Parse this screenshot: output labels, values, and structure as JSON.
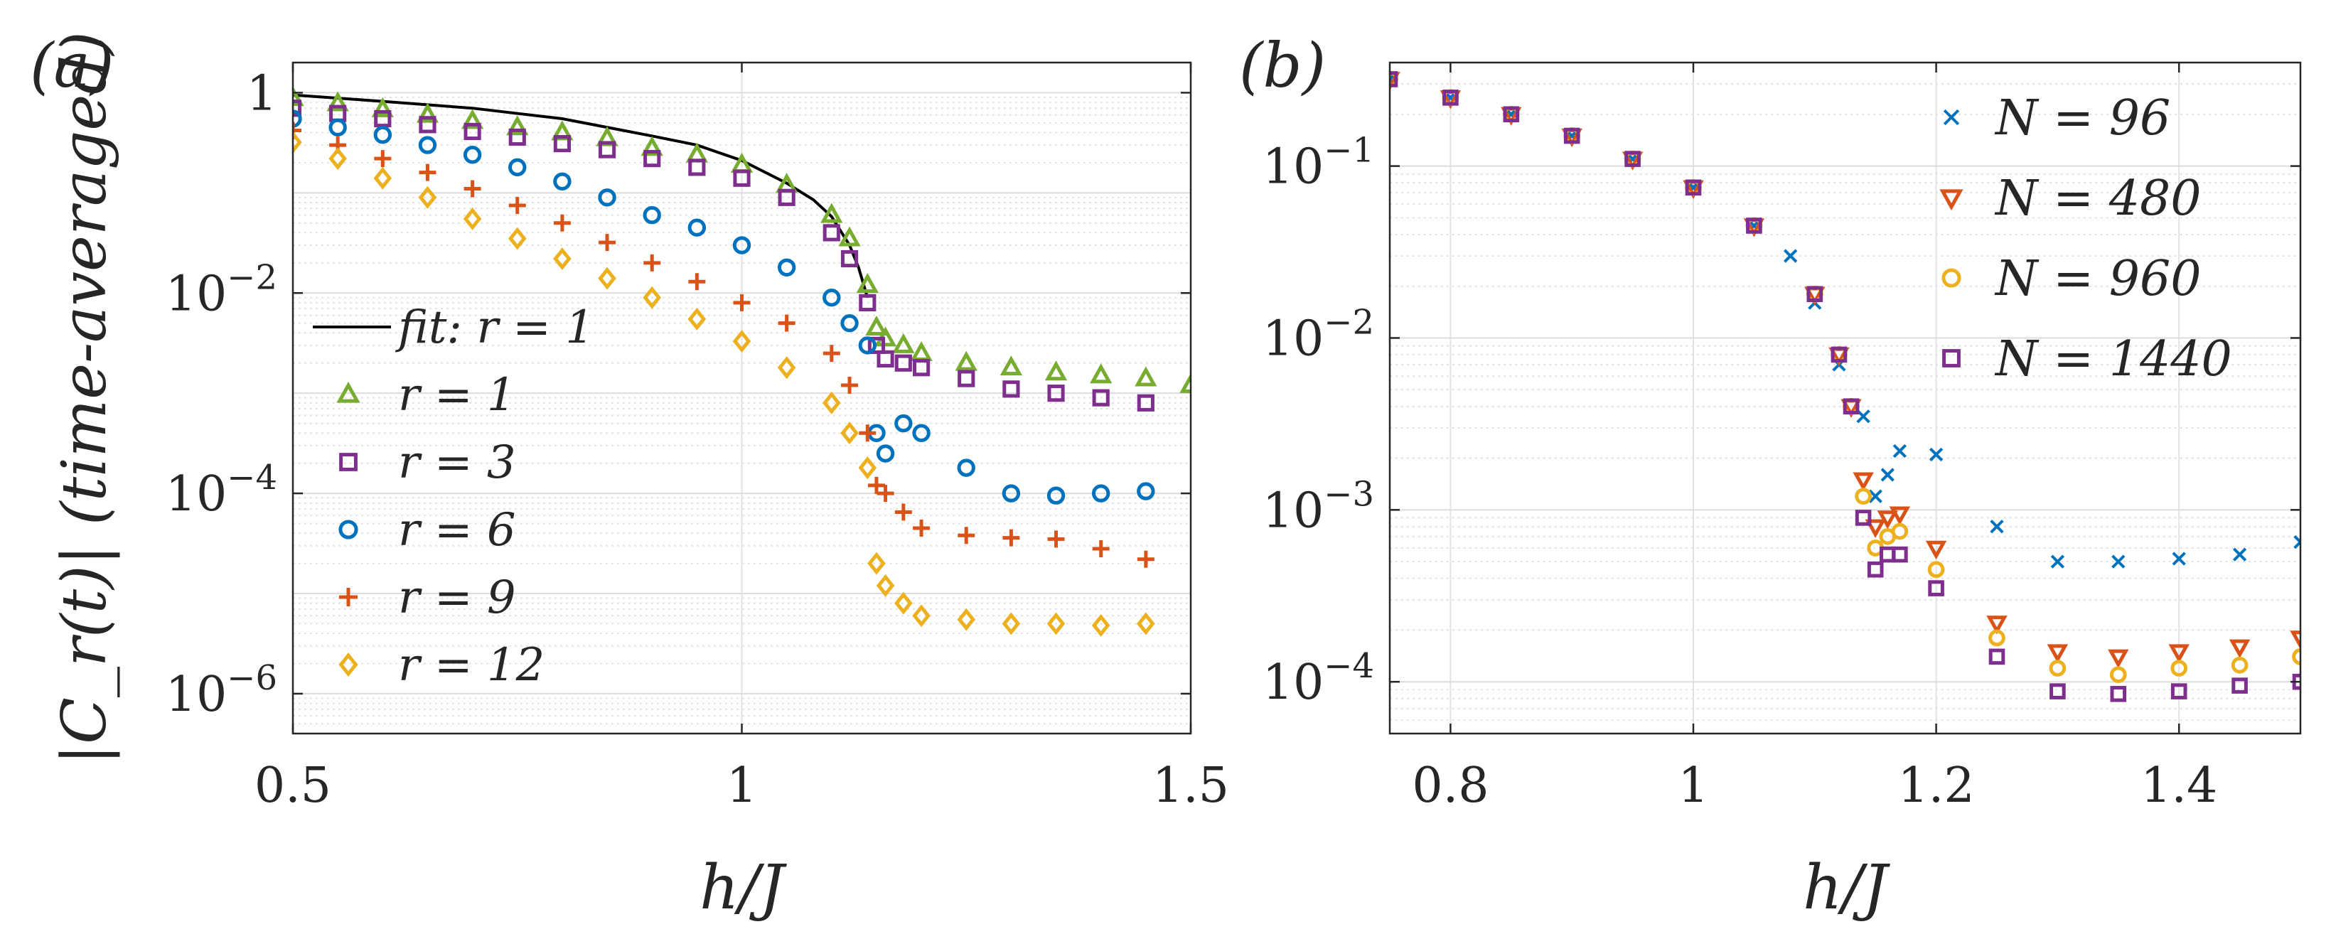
{
  "chart_data": [
    {
      "panel_label": "(a)",
      "type": "scatter",
      "yscale": "log",
      "xlabel": "h/J",
      "ylabel": "|C_r(t)| (time-averaged)",
      "xlim": [
        0.5,
        1.5
      ],
      "ylim": [
        4e-07,
        2.0
      ],
      "xticks": [
        {
          "v": 0.5,
          "label": "0.5"
        },
        {
          "v": 1,
          "label": "1"
        },
        {
          "v": 1.5,
          "label": "1.5"
        }
      ],
      "yticks": [
        {
          "v": 1,
          "base": "1",
          "exp": ""
        },
        {
          "v": 0.01,
          "base": "10",
          "exp": "−2"
        },
        {
          "v": 0.0001,
          "base": "10",
          "exp": "−4"
        },
        {
          "v": 1e-06,
          "base": "10",
          "exp": "−6"
        }
      ],
      "legend_position": "bottom-left",
      "legend": [
        "fit: r = 1",
        "r = 1",
        "r = 3",
        "r = 6",
        "r = 9",
        "r = 12"
      ],
      "fit": {
        "name": "fit: r = 1",
        "x": [
          0.5,
          0.6,
          0.7,
          0.8,
          0.9,
          0.95,
          1.0,
          1.05,
          1.08,
          1.1,
          1.12,
          1.13,
          1.14
        ],
        "y": [
          0.95,
          0.82,
          0.7,
          0.55,
          0.37,
          0.3,
          0.21,
          0.125,
          0.085,
          0.058,
          0.03,
          0.018,
          0.009
        ]
      },
      "series": [
        {
          "name": "r = 1",
          "marker": "triangle",
          "color": "#77AC30",
          "x": [
            0.5,
            0.55,
            0.6,
            0.65,
            0.7,
            0.75,
            0.8,
            0.85,
            0.9,
            0.95,
            1.0,
            1.05,
            1.1,
            1.12,
            1.14,
            1.15,
            1.16,
            1.18,
            1.2,
            1.25,
            1.3,
            1.35,
            1.4,
            1.45,
            1.5
          ],
          "y": [
            0.88,
            0.78,
            0.68,
            0.6,
            0.52,
            0.45,
            0.4,
            0.35,
            0.28,
            0.24,
            0.19,
            0.12,
            0.06,
            0.035,
            0.012,
            0.0045,
            0.0035,
            0.003,
            0.0025,
            0.002,
            0.0018,
            0.0016,
            0.0015,
            0.0014,
            0.0012
          ]
        },
        {
          "name": "r = 3",
          "marker": "square",
          "color": "#7E2F8E",
          "x": [
            0.5,
            0.55,
            0.6,
            0.65,
            0.7,
            0.75,
            0.8,
            0.85,
            0.9,
            0.95,
            1.0,
            1.05,
            1.1,
            1.12,
            1.14,
            1.15,
            1.16,
            1.18,
            1.2,
            1.25,
            1.3,
            1.35,
            1.4,
            1.45
          ],
          "y": [
            0.7,
            0.62,
            0.55,
            0.48,
            0.41,
            0.36,
            0.31,
            0.27,
            0.22,
            0.18,
            0.14,
            0.09,
            0.04,
            0.022,
            0.008,
            0.003,
            0.0022,
            0.002,
            0.0018,
            0.0014,
            0.0011,
            0.001,
            0.0009,
            0.0008
          ]
        },
        {
          "name": "r = 6",
          "marker": "circle",
          "color": "#0072BD",
          "x": [
            0.5,
            0.55,
            0.6,
            0.65,
            0.7,
            0.75,
            0.8,
            0.85,
            0.9,
            0.95,
            1.0,
            1.05,
            1.1,
            1.12,
            1.14,
            1.15,
            1.16,
            1.18,
            1.2,
            1.25,
            1.3,
            1.35,
            1.4,
            1.45
          ],
          "y": [
            0.55,
            0.45,
            0.38,
            0.3,
            0.24,
            0.18,
            0.13,
            0.09,
            0.06,
            0.045,
            0.03,
            0.018,
            0.009,
            0.005,
            0.003,
            0.0004,
            0.00025,
            0.0005,
            0.0004,
            0.00018,
            0.0001,
            9.5e-05,
            0.0001,
            0.000105
          ]
        },
        {
          "name": "r = 9",
          "marker": "plus",
          "color": "#D95319",
          "x": [
            0.5,
            0.55,
            0.6,
            0.65,
            0.7,
            0.75,
            0.8,
            0.85,
            0.9,
            0.95,
            1.0,
            1.05,
            1.1,
            1.12,
            1.14,
            1.15,
            1.16,
            1.18,
            1.2,
            1.25,
            1.3,
            1.35,
            1.4,
            1.45
          ],
          "y": [
            0.42,
            0.3,
            0.22,
            0.16,
            0.11,
            0.075,
            0.05,
            0.032,
            0.02,
            0.013,
            0.008,
            0.005,
            0.0025,
            0.0012,
            0.0004,
            0.00012,
            0.0001,
            6.5e-05,
            4.5e-05,
            3.8e-05,
            3.6e-05,
            3.5e-05,
            2.8e-05,
            2.2e-05
          ]
        },
        {
          "name": "r = 12",
          "marker": "diamond",
          "color": "#EDB120",
          "x": [
            0.5,
            0.55,
            0.6,
            0.65,
            0.7,
            0.75,
            0.8,
            0.85,
            0.9,
            0.95,
            1.0,
            1.05,
            1.1,
            1.12,
            1.14,
            1.15,
            1.16,
            1.18,
            1.2,
            1.25,
            1.3,
            1.35,
            1.4,
            1.45
          ],
          "y": [
            0.32,
            0.22,
            0.14,
            0.09,
            0.055,
            0.035,
            0.022,
            0.014,
            0.009,
            0.0055,
            0.0033,
            0.0018,
            0.0008,
            0.0004,
            0.00018,
            2e-05,
            1.2e-05,
            8e-06,
            6e-06,
            5.5e-06,
            5e-06,
            5e-06,
            4.8e-06,
            5e-06
          ]
        }
      ]
    },
    {
      "panel_label": "(b)",
      "type": "scatter",
      "yscale": "log",
      "xlabel": "h/J",
      "ylabel": "",
      "xlim": [
        0.75,
        1.5
      ],
      "ylim": [
        5e-05,
        0.4
      ],
      "xticks": [
        {
          "v": 0.8,
          "label": "0.8"
        },
        {
          "v": 1,
          "label": "1"
        },
        {
          "v": 1.2,
          "label": "1.2"
        },
        {
          "v": 1.4,
          "label": "1.4"
        }
      ],
      "yticks": [
        {
          "v": 0.1,
          "base": "10",
          "exp": "−1"
        },
        {
          "v": 0.01,
          "base": "10",
          "exp": "−2"
        },
        {
          "v": 0.001,
          "base": "10",
          "exp": "−3"
        },
        {
          "v": 0.0001,
          "base": "10",
          "exp": "−4"
        }
      ],
      "legend_position": "top-right",
      "legend": [
        "N = 96",
        "N = 480",
        "N = 960",
        "N = 1440"
      ],
      "series": [
        {
          "name": "N = 96",
          "marker": "x",
          "color": "#0072BD",
          "x": [
            0.75,
            0.8,
            0.85,
            0.9,
            0.95,
            1.0,
            1.05,
            1.08,
            1.1,
            1.12,
            1.14,
            1.15,
            1.16,
            1.17,
            1.2,
            1.25,
            1.3,
            1.35,
            1.4,
            1.45,
            1.5
          ],
          "y": [
            0.32,
            0.25,
            0.2,
            0.15,
            0.11,
            0.075,
            0.045,
            0.03,
            0.016,
            0.007,
            0.0035,
            0.0012,
            0.0016,
            0.0022,
            0.0021,
            0.0008,
            0.0005,
            0.0005,
            0.00052,
            0.00055,
            0.00065
          ]
        },
        {
          "name": "N = 480",
          "marker": "triangle-down",
          "color": "#D95319",
          "x": [
            0.75,
            0.8,
            0.85,
            0.9,
            0.95,
            1.0,
            1.05,
            1.1,
            1.12,
            1.13,
            1.14,
            1.15,
            1.16,
            1.17,
            1.2,
            1.25,
            1.3,
            1.35,
            1.4,
            1.45,
            1.5
          ],
          "y": [
            0.32,
            0.25,
            0.2,
            0.15,
            0.11,
            0.075,
            0.045,
            0.018,
            0.008,
            0.004,
            0.0015,
            0.0008,
            0.0009,
            0.00095,
            0.0006,
            0.00022,
            0.00015,
            0.00014,
            0.00015,
            0.00016,
            0.00018
          ]
        },
        {
          "name": "N = 960",
          "marker": "circle",
          "color": "#EDB120",
          "x": [
            0.75,
            0.8,
            0.85,
            0.9,
            0.95,
            1.0,
            1.05,
            1.1,
            1.12,
            1.13,
            1.14,
            1.15,
            1.16,
            1.17,
            1.2,
            1.25,
            1.3,
            1.35,
            1.4,
            1.45,
            1.5
          ],
          "y": [
            0.32,
            0.25,
            0.2,
            0.15,
            0.11,
            0.075,
            0.045,
            0.018,
            0.008,
            0.004,
            0.0012,
            0.0006,
            0.0007,
            0.00075,
            0.00045,
            0.00018,
            0.00012,
            0.00011,
            0.00012,
            0.000125,
            0.00014
          ]
        },
        {
          "name": "N = 1440",
          "marker": "square",
          "color": "#7E2F8E",
          "x": [
            0.75,
            0.8,
            0.85,
            0.9,
            0.95,
            1.0,
            1.05,
            1.1,
            1.12,
            1.13,
            1.14,
            1.15,
            1.16,
            1.17,
            1.2,
            1.25,
            1.3,
            1.35,
            1.4,
            1.45,
            1.5
          ],
          "y": [
            0.32,
            0.25,
            0.2,
            0.15,
            0.11,
            0.075,
            0.045,
            0.018,
            0.008,
            0.004,
            0.0009,
            0.00045,
            0.00055,
            0.00055,
            0.00035,
            0.00014,
            8.8e-05,
            8.5e-05,
            8.8e-05,
            9.5e-05,
            0.0001
          ]
        }
      ]
    }
  ]
}
